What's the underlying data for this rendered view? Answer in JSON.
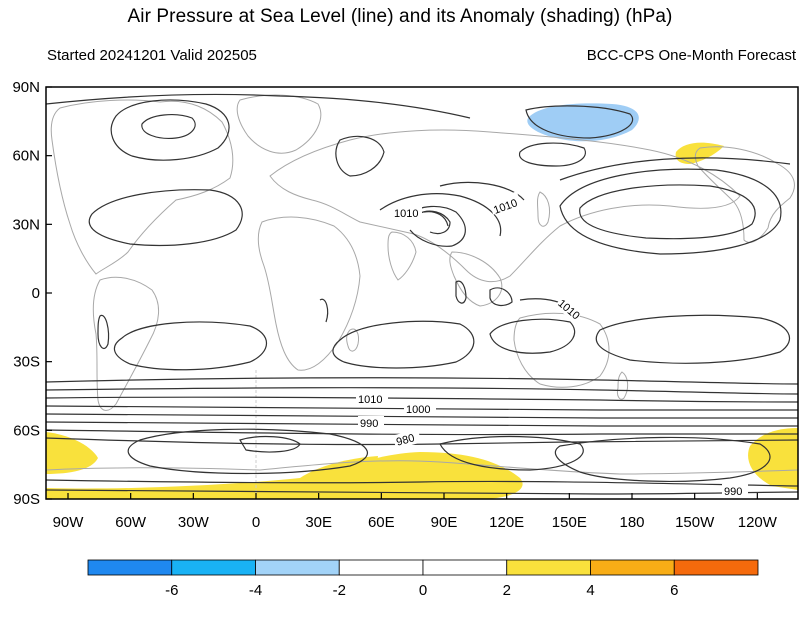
{
  "title": "Air Pressure at Sea Level (line) and its Anomaly (shading) (hPa)",
  "subtitle_left": "Started 20241201  Valid 202505",
  "subtitle_right": "BCC-CPS One-Month Forecast",
  "lat_ticks": [
    "90N",
    "60N",
    "30N",
    "0",
    "30S",
    "60S",
    "90S"
  ],
  "lon_ticks": [
    "90W",
    "60W",
    "30W",
    "0",
    "30E",
    "60E",
    "90E",
    "120E",
    "150E",
    "180",
    "150W",
    "120W"
  ],
  "contour_labels": [
    "1010",
    "1010",
    "1010",
    "1010",
    "1000",
    "990",
    "980",
    "990"
  ],
  "colorbar": {
    "colors": [
      "#1f88f0",
      "#19b2f5",
      "#a2d3f8",
      "#ffffff",
      "#ffffff",
      "#f9e13c",
      "#f8ad16",
      "#f56a0c"
    ],
    "tick_labels": [
      "-6",
      "-4",
      "-2",
      "0",
      "2",
      "4",
      "6"
    ]
  },
  "colors": {
    "positive_anomaly": "#f9e13c",
    "negative_anomaly": "#9fcdf5",
    "contour": "#333333",
    "coastline": "#a8a8a8"
  }
}
